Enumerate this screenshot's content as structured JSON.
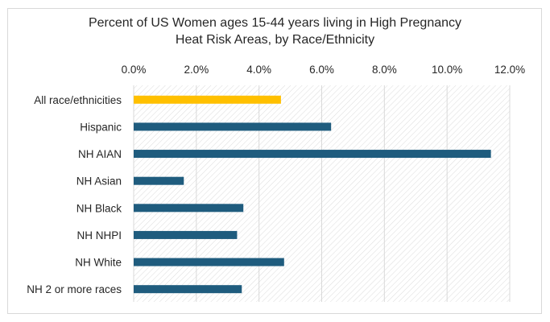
{
  "chart_data": {
    "type": "bar",
    "orientation": "horizontal",
    "title_lines": [
      "Percent of US Women ages 15-44 years living in High Pregnancy",
      "Heat Risk Areas, by Race/Ethnicity"
    ],
    "categories": [
      "All race/ethnicities",
      "Hispanic",
      "NH AIAN",
      "NH Asian",
      "NH Black",
      "NH NHPI",
      "NH White",
      "NH 2 or more races"
    ],
    "values": [
      4.7,
      6.3,
      11.4,
      1.6,
      3.5,
      3.3,
      4.8,
      3.45
    ],
    "xlim": [
      0,
      12
    ],
    "x_ticks": [
      "0.0%",
      "2.0%",
      "4.0%",
      "6.0%",
      "8.0%",
      "10.0%",
      "12.0%"
    ],
    "x_axis_position": "top",
    "grid": true,
    "colors": {
      "highlight": "#ffc000",
      "bar": "#1f5c7e",
      "grid": "#d9d9d9",
      "hatch": "#dcdcdc"
    }
  }
}
